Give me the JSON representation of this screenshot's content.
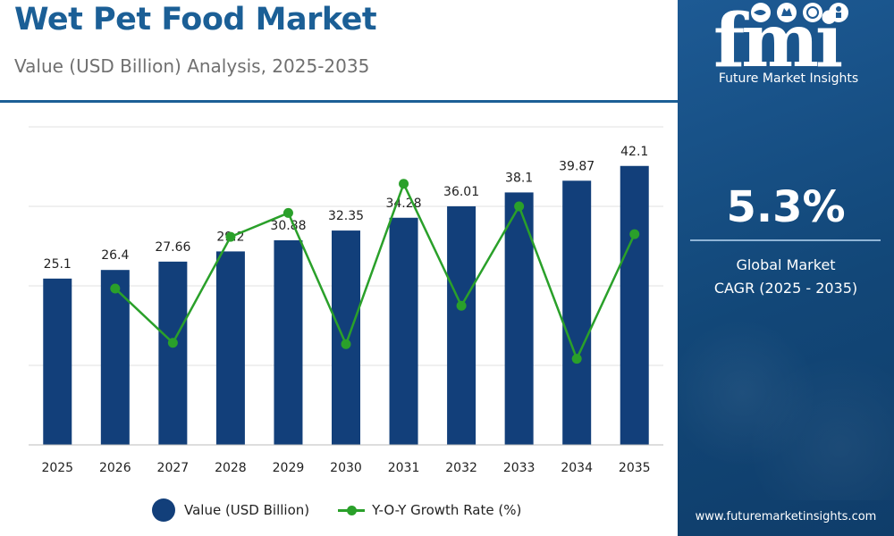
{
  "header": {
    "title": "Wet Pet Food Market",
    "subtitle": "Value (USD Billion) Analysis, 2025-2035"
  },
  "brand": {
    "logo_text": "fmi",
    "name": "Future Market Insights",
    "url": "www.futuremarketinsights.com",
    "logo_icons": [
      "fish-icon",
      "cat-icon",
      "globe-icon",
      "person-icon"
    ]
  },
  "cagr": {
    "value": "5.3%",
    "label_line1": "Global Market",
    "label_line2": "CAGR (2025 - 2035)"
  },
  "chart_data": {
    "type": "bar",
    "categories": [
      "2025",
      "2026",
      "2027",
      "2028",
      "2029",
      "2030",
      "2031",
      "2032",
      "2033",
      "2034",
      "2035"
    ],
    "series": [
      {
        "name": "Value (USD Billion)",
        "type": "bar",
        "color": "#123f7a",
        "values": [
          25.1,
          26.4,
          27.66,
          29.2,
          30.88,
          32.35,
          34.28,
          36.01,
          38.1,
          39.87,
          42.1
        ],
        "labels": [
          "25.1",
          "26.4",
          "27.66",
          "29.2",
          "30.88",
          "32.35",
          "34.28",
          "36.01",
          "38.1",
          "39.87",
          "42.1"
        ]
      },
      {
        "name": "Y-O-Y Growth Rate (%)",
        "type": "line",
        "color": "#2aa02a",
        "values": [
          null,
          5.18,
          4.77,
          5.57,
          5.75,
          4.76,
          5.97,
          5.05,
          5.8,
          4.65,
          5.59
        ]
      }
    ],
    "ylim": [
      0,
      48
    ],
    "y2lim": [
      4.0,
      6.4
    ],
    "grid": true,
    "legend": "bottom"
  },
  "colors": {
    "title": "#1b5f96",
    "bar": "#123f7a",
    "line": "#2aa02a",
    "sidebar": "#164d82"
  }
}
